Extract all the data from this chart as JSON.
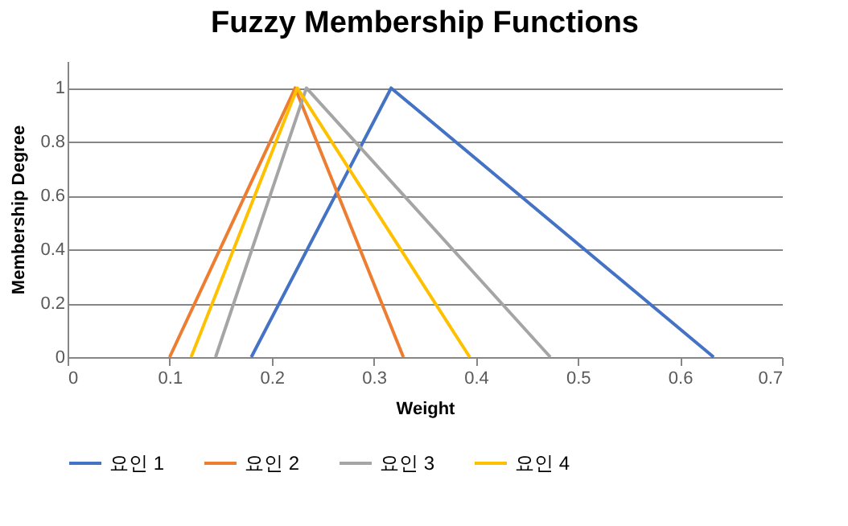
{
  "chart_data": {
    "type": "line",
    "title": "Fuzzy Membership Functions",
    "xlabel": "Weight",
    "ylabel": "Membership Degree",
    "xlim": [
      0,
      0.7
    ],
    "xticks": [
      0,
      0.1,
      0.2,
      0.3,
      0.4,
      0.5,
      0.6,
      0.7
    ],
    "ylim": [
      0,
      1.1
    ],
    "yticks": [
      0,
      0.2,
      0.4,
      0.6,
      0.8,
      1
    ],
    "grid": "y",
    "legend": "bottom",
    "marker": "none",
    "line_style": "solid",
    "series": [
      {
        "name": "요인 1",
        "color": "#4472c4",
        "x": [
          0.18,
          0.317,
          0.633
        ],
        "values": [
          0,
          1,
          0
        ]
      },
      {
        "name": "요인 2",
        "color": "#ed7d31",
        "x": [
          0.1,
          0.223,
          0.329
        ],
        "values": [
          0,
          1,
          0
        ]
      },
      {
        "name": "요인 3",
        "color": "#a5a5a5",
        "x": [
          0.145,
          0.234,
          0.473
        ],
        "values": [
          0,
          1,
          0
        ]
      },
      {
        "name": "요인 4",
        "color": "#ffc000",
        "x": [
          0.121,
          0.225,
          0.394
        ],
        "values": [
          0,
          1,
          0
        ]
      }
    ]
  }
}
